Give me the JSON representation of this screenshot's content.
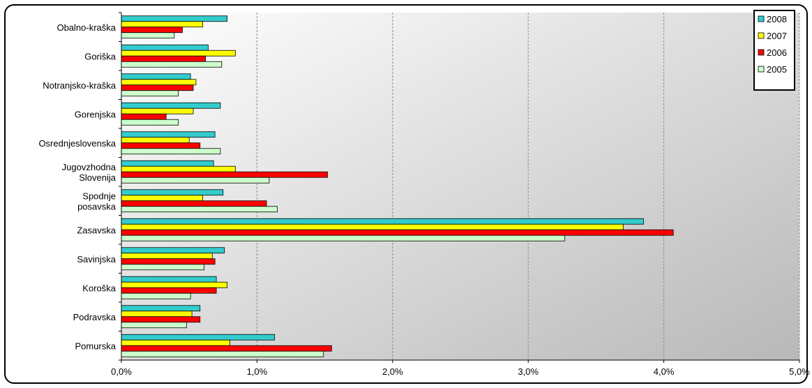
{
  "chart_data": {
    "type": "bar",
    "orientation": "horizontal",
    "categories": [
      "Obalno-kraška",
      "Goriška",
      "Notranjsko-kraška",
      "Gorenjska",
      "Osrednjeslovenska",
      "Jugovzhodna Slovenija",
      "Spodnje posavska",
      "Zasavska",
      "Savinjska",
      "Koroška",
      "Podravska",
      "Pomurska"
    ],
    "category_label_lines": [
      [
        "Obalno-kraška"
      ],
      [
        "Goriška"
      ],
      [
        "Notranjsko-kraška"
      ],
      [
        "Gorenjska"
      ],
      [
        "Osrednjeslovenska"
      ],
      [
        "Jugovzhodna",
        "Slovenija"
      ],
      [
        "Spodnje",
        "posavska"
      ],
      [
        "Zasavska"
      ],
      [
        "Savinjska"
      ],
      [
        "Koroška"
      ],
      [
        "Podravska"
      ],
      [
        "Pomurska"
      ]
    ],
    "series": [
      {
        "name": "2008",
        "color": "#33CCCC",
        "values": [
          0.78,
          0.64,
          0.51,
          0.73,
          0.69,
          0.68,
          0.75,
          3.85,
          0.76,
          0.7,
          0.58,
          1.13
        ]
      },
      {
        "name": "2007",
        "color": "#FFFF00",
        "values": [
          0.6,
          0.84,
          0.55,
          0.53,
          0.5,
          0.84,
          0.6,
          3.7,
          0.67,
          0.78,
          0.52,
          0.8
        ]
      },
      {
        "name": "2006",
        "color": "#FF0000",
        "values": [
          0.45,
          0.62,
          0.53,
          0.33,
          0.58,
          1.52,
          1.07,
          4.07,
          0.69,
          0.7,
          0.58,
          1.55
        ]
      },
      {
        "name": "2005",
        "color": "#CCFFCC",
        "values": [
          0.39,
          0.74,
          0.42,
          0.42,
          0.73,
          1.09,
          1.15,
          3.27,
          0.61,
          0.51,
          0.48,
          1.49
        ]
      }
    ],
    "xlim": [
      0,
      5
    ],
    "x_ticks": [
      0,
      1,
      2,
      3,
      4,
      5
    ],
    "x_tick_labels": [
      "0,0%",
      "1,0%",
      "2,0%",
      "3,0%",
      "4,0%",
      "5,0%"
    ],
    "legend_order": [
      "2008",
      "2007",
      "2006",
      "2005"
    ],
    "legend_position": "top-right",
    "grid": true,
    "plot_background": "gradient white to gray",
    "title": "",
    "xlabel": "",
    "ylabel": ""
  }
}
